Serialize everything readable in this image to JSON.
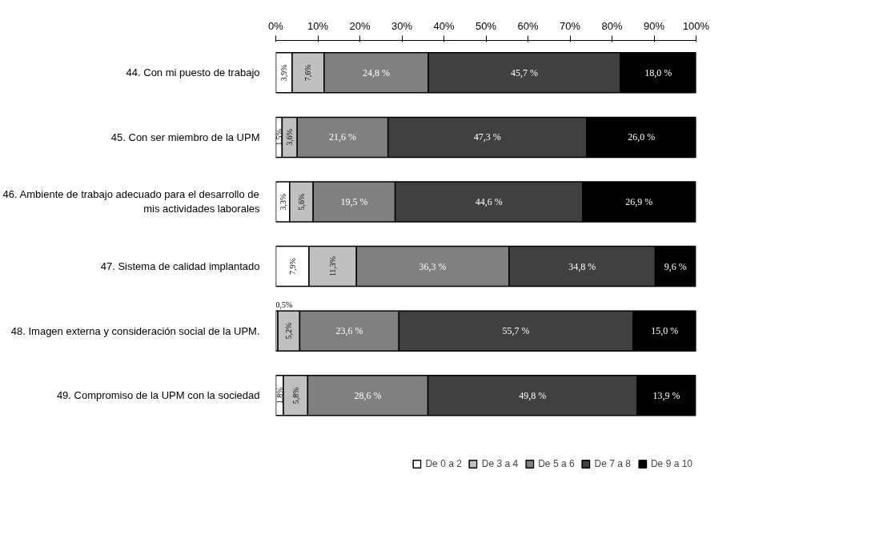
{
  "chart_data": {
    "type": "bar",
    "orientation": "horizontal",
    "stacked": true,
    "categories": [
      "44. Con mi puesto de trabajo",
      "45. Con ser miembro de la UPM",
      "46. Ambiente de trabajo adecuado para el desarrollo de mis actividades laborales",
      "47. Sistema de calidad implantado",
      "48. Imagen externa y consideración social de la UPM.",
      "49. Compromiso de la UPM con la sociedad"
    ],
    "series": [
      {
        "name": "De 0 a 2",
        "color": "#ffffff",
        "values": [
          3.9,
          1.5,
          3.3,
          7.9,
          0.5,
          1.8
        ],
        "value_labels": [
          "3,9%",
          "1,5%",
          "3,3%",
          "7,9%",
          "0,5%",
          "1,8%"
        ]
      },
      {
        "name": "De 3 a 4",
        "color": "#c0c0c0",
        "values": [
          7.6,
          3.6,
          5.6,
          11.3,
          5.2,
          5.8
        ],
        "value_labels": [
          "7,6%",
          "3,6%",
          "5,6%",
          "11,3%",
          "5,2%",
          "5,8%"
        ]
      },
      {
        "name": "De 5 a 6",
        "color": "#808080",
        "values": [
          24.8,
          21.6,
          19.5,
          36.3,
          23.6,
          28.6
        ],
        "value_labels": [
          "24,8 %",
          "21,6 %",
          "19,5 %",
          "36,3 %",
          "23,6 %",
          "28,6 %"
        ]
      },
      {
        "name": "De 7 a 8",
        "color": "#404040",
        "values": [
          45.7,
          47.3,
          44.6,
          34.8,
          55.7,
          49.8
        ],
        "value_labels": [
          "45,7 %",
          "47,3 %",
          "44,6 %",
          "34,8 %",
          "55,7 %",
          "49,8 %"
        ]
      },
      {
        "name": "De 9 a 10",
        "color": "#000000",
        "values": [
          18.0,
          26.0,
          26.9,
          9.6,
          15.0,
          13.9
        ],
        "value_labels": [
          "18,0 %",
          "26,0 %",
          "26,9 %",
          "9,6 %",
          "15,0 %",
          "13,9 %"
        ]
      }
    ],
    "xlim": [
      0,
      100
    ],
    "xticks": [
      {
        "value": 0,
        "label": "0%"
      },
      {
        "value": 10,
        "label": "10%"
      },
      {
        "value": 20,
        "label": "20%"
      },
      {
        "value": 30,
        "label": "30%"
      },
      {
        "value": 40,
        "label": "40%"
      },
      {
        "value": 50,
        "label": "50%"
      },
      {
        "value": 60,
        "label": "60%"
      },
      {
        "value": 70,
        "label": "70%"
      },
      {
        "value": 80,
        "label": "80%"
      },
      {
        "value": 90,
        "label": "90%"
      },
      {
        "value": 100,
        "label": "100%"
      }
    ],
    "grid": false,
    "legend": "bottom"
  }
}
